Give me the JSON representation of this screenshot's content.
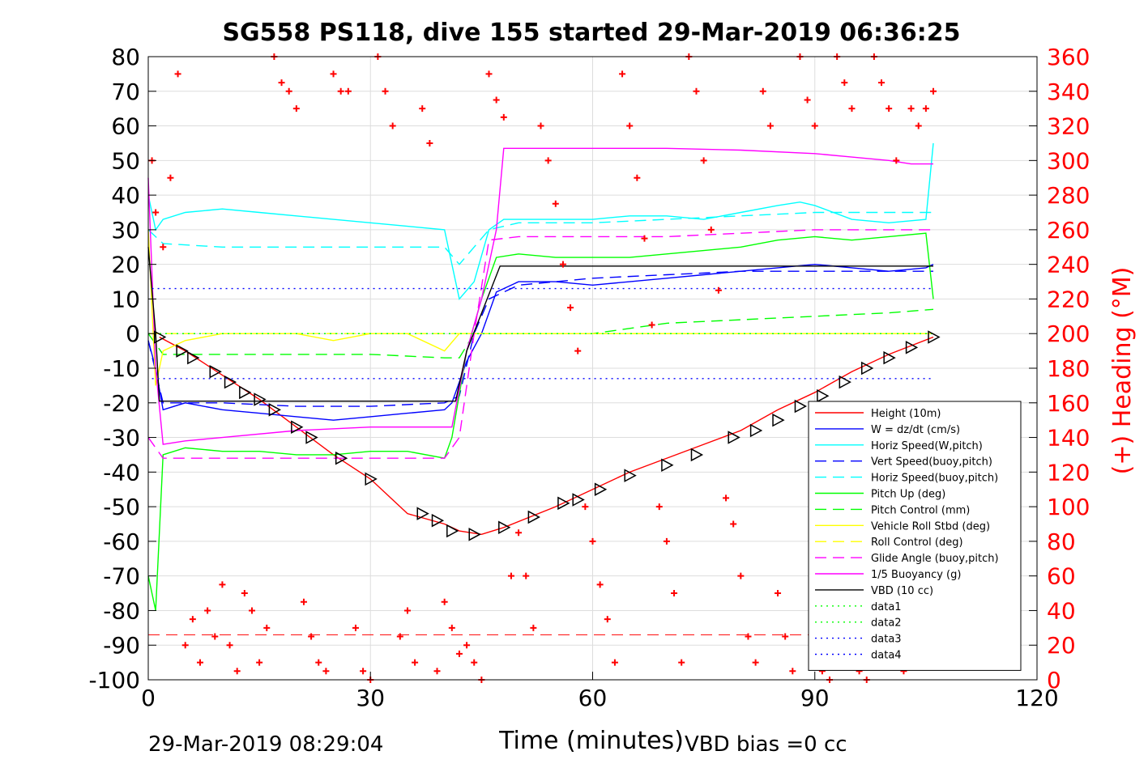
{
  "chart_data": {
    "type": "line",
    "title": "SG558 PS118, dive 155 started 29-Mar-2019 06:36:25",
    "xlabel": "Time (minutes)",
    "ylabel": "",
    "y2label": "(+) Heading (°M)",
    "xlim": [
      0,
      120
    ],
    "ylim": [
      -100,
      80
    ],
    "y2lim": [
      0,
      360
    ],
    "xticks": [
      0,
      30,
      60,
      90,
      120
    ],
    "yticks": [
      80,
      70,
      60,
      50,
      40,
      30,
      20,
      10,
      0,
      -10,
      -20,
      -30,
      -40,
      -50,
      -60,
      -70,
      -80,
      -90,
      -100
    ],
    "y2ticks": [
      360,
      340,
      320,
      300,
      280,
      260,
      240,
      220,
      200,
      180,
      160,
      140,
      120,
      100,
      80,
      60,
      40,
      20,
      0
    ],
    "grid": true,
    "legend_position": "lower-right",
    "footer_left": "29-Mar-2019 08:29:04",
    "footer_right": "VBD bias =0 cc",
    "colors": {
      "red": "#ff0000",
      "blue": "#0000ff",
      "cyan": "#00ffff",
      "green": "#00ff00",
      "yellow": "#ffff00",
      "magenta": "#ff00ff",
      "black": "#000000",
      "grid": "#dddddd"
    },
    "series": [
      {
        "name": "Height (10m)",
        "color": "#ff0000",
        "style": "solid",
        "x": [
          1.5,
          5,
          10,
          15,
          20,
          25,
          30,
          35,
          40,
          42,
          45,
          48,
          55,
          60,
          65,
          70,
          75,
          80,
          85,
          90,
          95,
          100,
          106
        ],
        "y": [
          -1,
          -5,
          -12,
          -19,
          -27,
          -35,
          -42,
          -52,
          -55,
          -57,
          -58,
          -56,
          -50,
          -45,
          -40,
          -36,
          -32,
          -28,
          -22,
          -17,
          -11,
          -6,
          -1
        ]
      },
      {
        "name": "W = dz/dt (cm/s)",
        "color": "#0000ff",
        "style": "solid",
        "x": [
          0,
          1,
          2,
          5,
          10,
          15,
          20,
          25,
          30,
          35,
          40,
          41,
          43,
          45,
          47,
          50,
          55,
          60,
          65,
          70,
          75,
          80,
          85,
          90,
          95,
          100,
          105,
          106
        ],
        "y": [
          -2,
          -10,
          -22,
          -20,
          -22,
          -23,
          -24,
          -25,
          -24,
          -23,
          -22,
          -20,
          -8,
          0,
          12,
          15,
          15,
          14,
          15,
          16,
          17,
          18,
          19,
          20,
          19,
          18,
          19,
          20
        ]
      },
      {
        "name": "Horiz Speed(W,pitch)",
        "color": "#00ffff",
        "style": "solid",
        "x": [
          0,
          1,
          2,
          5,
          10,
          15,
          20,
          25,
          30,
          35,
          40,
          42,
          44,
          46,
          48,
          55,
          60,
          65,
          70,
          75,
          80,
          85,
          88,
          90,
          95,
          100,
          105,
          106
        ],
        "y": [
          40,
          30,
          33,
          35,
          36,
          35,
          34,
          33,
          32,
          31,
          30,
          10,
          15,
          30,
          33,
          33,
          33,
          34,
          34,
          33,
          35,
          37,
          38,
          37,
          33,
          32,
          33,
          55
        ]
      },
      {
        "name": "Vert Speed(buoy,pitch)",
        "color": "#0000ff",
        "style": "dashed",
        "x": [
          0,
          2,
          10,
          20,
          30,
          40,
          42,
          44,
          46,
          50,
          60,
          70,
          80,
          90,
          100,
          106
        ],
        "y": [
          -2,
          -20,
          -20,
          -21,
          -21,
          -20,
          -18,
          0,
          10,
          14,
          16,
          17,
          18,
          18,
          18,
          18
        ]
      },
      {
        "name": "Horiz Speed(buoy,pitch)",
        "color": "#00ffff",
        "style": "dashed",
        "x": [
          0,
          2,
          10,
          20,
          30,
          40,
          42,
          44,
          46,
          50,
          60,
          70,
          80,
          90,
          100,
          106
        ],
        "y": [
          30,
          26,
          25,
          25,
          25,
          25,
          20,
          25,
          30,
          32,
          32,
          33,
          34,
          35,
          35,
          35
        ]
      },
      {
        "name": "Pitch Up (deg)",
        "color": "#00ff00",
        "style": "solid",
        "x": [
          0,
          1,
          2,
          5,
          10,
          15,
          20,
          25,
          30,
          35,
          40,
          41,
          43,
          45,
          47,
          50,
          55,
          60,
          65,
          70,
          75,
          80,
          85,
          90,
          95,
          100,
          105,
          106
        ],
        "y": [
          -70,
          -80,
          -35,
          -33,
          -34,
          -34,
          -35,
          -35,
          -34,
          -34,
          -36,
          -30,
          -5,
          10,
          22,
          23,
          22,
          22,
          22,
          23,
          24,
          25,
          27,
          28,
          27,
          28,
          29,
          10
        ]
      },
      {
        "name": "Pitch Control (mm)",
        "color": "#00ff00",
        "style": "dashed",
        "x": [
          0,
          2,
          10,
          20,
          30,
          40,
          42,
          44,
          46,
          50,
          60,
          70,
          80,
          90,
          100,
          106
        ],
        "y": [
          0,
          -6,
          -6,
          -6,
          -6,
          -7,
          -7,
          0,
          0,
          0,
          0,
          3,
          4,
          5,
          6,
          7
        ]
      },
      {
        "name": "Vehicle Roll Stbd (deg)",
        "color": "#ffff00",
        "style": "solid",
        "x": [
          0,
          1,
          2,
          5,
          10,
          15,
          20,
          25,
          30,
          35,
          40,
          42,
          45,
          48,
          50,
          55,
          60,
          65,
          70,
          75,
          80,
          85,
          90,
          95,
          100,
          105,
          106
        ],
        "y": [
          30,
          -15,
          -5,
          -2,
          0,
          0,
          0,
          -2,
          0,
          0,
          -5,
          0,
          0,
          0,
          0,
          0,
          0,
          0,
          0,
          0,
          0,
          0,
          0,
          0,
          0,
          0,
          0
        ]
      },
      {
        "name": "Roll Control (deg)",
        "color": "#ffff00",
        "style": "dashed",
        "x": [
          0,
          2,
          10,
          20,
          30,
          40,
          42,
          44,
          46,
          50,
          60,
          70,
          80,
          90,
          100,
          106
        ],
        "y": [
          0,
          0,
          0,
          0,
          0,
          0,
          0,
          0,
          0,
          0,
          0,
          0,
          0,
          0,
          0,
          0
        ]
      },
      {
        "name": "Glide Angle (buoy,pitch)",
        "color": "#ff00ff",
        "style": "dashed",
        "x": [
          0,
          2,
          10,
          20,
          30,
          40,
          42,
          44,
          46,
          50,
          60,
          70,
          80,
          90,
          100,
          106
        ],
        "y": [
          -30,
          -36,
          -36,
          -36,
          -36,
          -36,
          -30,
          0,
          27,
          28,
          28,
          28,
          29,
          30,
          30,
          30
        ]
      },
      {
        "name": "1/5 Buoyancy (g)",
        "color": "#ff00ff",
        "style": "solid",
        "x": [
          0,
          1,
          2,
          5,
          10,
          20,
          30,
          40,
          41,
          43,
          45,
          47,
          48,
          55,
          60,
          70,
          80,
          90,
          95,
          100,
          103,
          106
        ],
        "y": [
          45,
          -10,
          -32,
          -31,
          -30,
          -28,
          -27,
          -27,
          -27,
          -5,
          10,
          30,
          53.5,
          53.5,
          53.5,
          53.5,
          53,
          52,
          51,
          50,
          49,
          49
        ]
      },
      {
        "name": "VBD (10 cc)",
        "color": "#000000",
        "style": "solid",
        "x": [
          0,
          1,
          1.5,
          41.5,
          43,
          47.5,
          90,
          106
        ],
        "y": [
          25,
          0,
          -19.5,
          -19.5,
          -5,
          19.5,
          19.5,
          19.5
        ]
      },
      {
        "name": "data1",
        "color": "#00ff00",
        "style": "dotted",
        "x": [
          0,
          106
        ],
        "y": [
          0,
          0
        ]
      },
      {
        "name": "data2",
        "color": "#00ff00",
        "style": "dotted",
        "x": [
          0,
          106
        ],
        "y": [
          0,
          0
        ]
      },
      {
        "name": "data3",
        "color": "#0000ff",
        "style": "dotted",
        "x": [
          0.5,
          106
        ],
        "y": [
          13,
          13
        ]
      },
      {
        "name": "data4",
        "color": "#0000ff",
        "style": "dotted",
        "x": [
          0.5,
          106
        ],
        "y": [
          -13,
          -13
        ]
      }
    ],
    "reference_line": {
      "color": "#ff0000",
      "style": "dashed",
      "y": -87,
      "x": [
        0,
        106
      ]
    },
    "depth_markers": {
      "color": "#000000",
      "x": [
        1.5,
        4.5,
        6,
        9,
        11,
        13,
        15,
        17,
        20,
        22,
        26,
        30,
        37,
        39,
        41,
        44,
        48,
        52,
        56,
        58,
        61,
        65,
        70,
        74,
        79,
        82,
        85,
        88,
        91,
        94,
        97,
        100,
        103,
        106
      ],
      "y": [
        -1,
        -5,
        -7,
        -11,
        -14,
        -17,
        -19,
        -22,
        -27,
        -30,
        -36,
        -42,
        -52,
        -54,
        -57,
        -58,
        -56,
        -53,
        -49,
        -48,
        -45,
        -41,
        -38,
        -35,
        -30,
        -28,
        -25,
        -21,
        -18,
        -14,
        -10,
        -7,
        -4,
        -1
      ]
    },
    "heading": {
      "color": "#ff0000",
      "marker": "+",
      "x": [
        0.5,
        1,
        2,
        3,
        4,
        5,
        6,
        7,
        8,
        9,
        10,
        11,
        12,
        13,
        14,
        15,
        16,
        17,
        18,
        19,
        20,
        21,
        22,
        23,
        24,
        25,
        26,
        27,
        28,
        29,
        30,
        31,
        32,
        33,
        34,
        35,
        36,
        37,
        38,
        39,
        40,
        41,
        42,
        43,
        44,
        45,
        46,
        47,
        48,
        49,
        50,
        51,
        52,
        53,
        54,
        55,
        56,
        57,
        58,
        59,
        60,
        61,
        62,
        63,
        64,
        65,
        66,
        67,
        68,
        69,
        70,
        71,
        72,
        73,
        74,
        75,
        76,
        77,
        78,
        79,
        80,
        81,
        82,
        83,
        84,
        85,
        86,
        87,
        88,
        89,
        90,
        91,
        92,
        93,
        94,
        95,
        96,
        97,
        98,
        99,
        100,
        101,
        102,
        103,
        104,
        105,
        106
      ],
      "y": [
        300,
        270,
        250,
        290,
        350,
        20,
        35,
        10,
        40,
        25,
        55,
        20,
        5,
        50,
        40,
        10,
        30,
        360,
        345,
        340,
        330,
        45,
        25,
        10,
        5,
        350,
        340,
        340,
        30,
        5,
        0,
        360,
        340,
        320,
        25,
        40,
        10,
        330,
        310,
        5,
        45,
        30,
        15,
        20,
        10,
        0,
        350,
        335,
        325,
        60,
        85,
        60,
        30,
        320,
        300,
        275,
        240,
        215,
        190,
        100,
        80,
        55,
        35,
        10,
        350,
        320,
        290,
        255,
        205,
        100,
        80,
        50,
        10,
        360,
        340,
        300,
        260,
        225,
        105,
        90,
        60,
        25,
        10,
        340,
        320,
        50,
        25,
        5,
        360,
        335,
        320,
        5,
        0,
        360,
        345,
        330,
        5,
        0,
        360,
        345,
        330,
        300,
        5,
        330,
        320,
        330,
        340
      ]
    }
  }
}
